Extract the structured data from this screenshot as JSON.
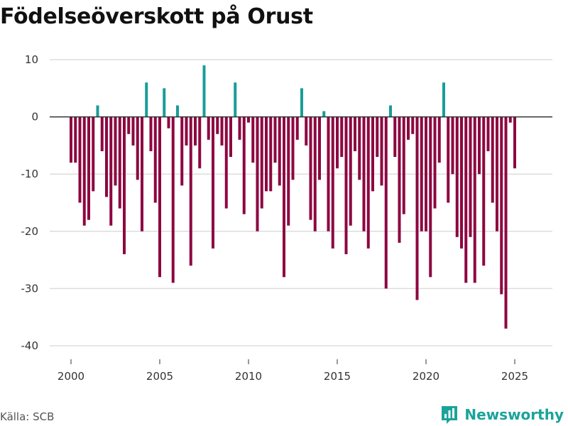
{
  "title": "Födelseöverskott på Orust",
  "source": "Källa: SCB",
  "brand": {
    "name": "Newsworthy",
    "logo_icon": "bar-chart-icon"
  },
  "colors": {
    "positive": "#1a9c98",
    "negative": "#8d0641",
    "grid": "#dddddd",
    "zero_line": "#333333",
    "brand": "#1aa39b"
  },
  "chart_data": {
    "type": "bar",
    "title": "Födelseöverskott på Orust",
    "xlabel": "",
    "ylabel": "",
    "ylim": [
      -40,
      10
    ],
    "yticks": [
      10,
      0,
      -10,
      -20,
      -30,
      -40
    ],
    "xticks": [
      2000,
      2005,
      2010,
      2015,
      2020,
      2025
    ],
    "xlim": [
      1999.0,
      2027.0
    ],
    "grid": true,
    "frequency": "monthly",
    "x_start": 2000.0,
    "x_step": 0.25,
    "values": [
      -8,
      -8,
      -15,
      -19,
      -18,
      -13,
      2,
      -6,
      -14,
      -19,
      -12,
      -16,
      -24,
      -3,
      -5,
      -11,
      -20,
      6,
      -6,
      -15,
      -28,
      5,
      -2,
      -29,
      2,
      -12,
      -5,
      -26,
      -5,
      -9,
      9,
      -4,
      -23,
      -3,
      -5,
      -16,
      -7,
      6,
      -4,
      -17,
      -1,
      -8,
      -20,
      -16,
      -13,
      -13,
      -8,
      -12,
      -28,
      -19,
      -11,
      -4,
      5,
      -5,
      -18,
      -20,
      -11,
      1,
      -20,
      -23,
      -9,
      -7,
      -24,
      -19,
      -6,
      -11,
      -20,
      -23,
      -13,
      -7,
      -12,
      -30,
      2,
      -7,
      -22,
      -17,
      -4,
      -3,
      -32,
      -20,
      -20,
      -28,
      -16,
      -8,
      6,
      -15,
      -10,
      -21,
      -23,
      -29,
      -21,
      -29,
      -10,
      -26,
      -6,
      -15,
      -20,
      -31,
      -37,
      -1,
      -9
    ]
  }
}
